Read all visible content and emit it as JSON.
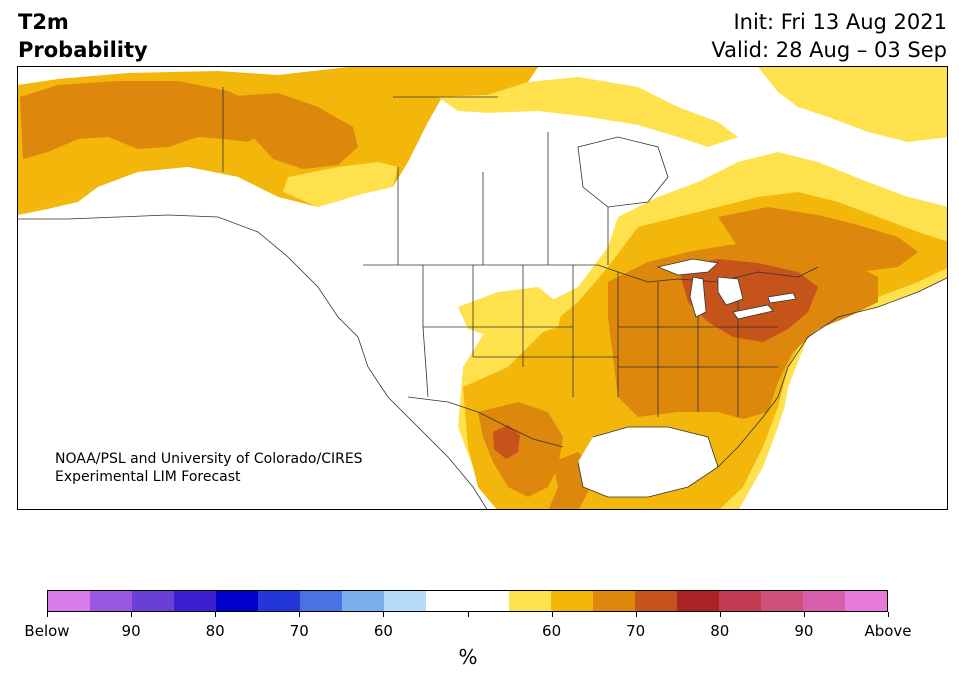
{
  "header": {
    "title_line1": "T2m",
    "title_line2": "Probability",
    "init": "Init: Fri 13 Aug 2021",
    "valid": "Valid: 28 Aug – 03 Sep"
  },
  "map": {
    "credit_line1": "NOAA/PSL and University of Colorado/CIRES",
    "credit_line2": "Experimental LIM Forecast",
    "region": "North America"
  },
  "colorbar": {
    "colors": [
      "#d67bea",
      "#9a57df",
      "#6a3fd6",
      "#3a20d0",
      "#0000cc",
      "#2236d9",
      "#4b72e2",
      "#7ab0ee",
      "#b5ddf9",
      "#ffffff",
      "#ffffff",
      "#ffe14d",
      "#f2b70a",
      "#dd870c",
      "#c5531a",
      "#ad2325",
      "#c23a51",
      "#cf5179",
      "#d85fab",
      "#e87ad8"
    ],
    "labels": [
      "Below",
      "90",
      "80",
      "70",
      "60",
      "60",
      "70",
      "80",
      "90",
      "Above"
    ],
    "unit": "%"
  },
  "colors": {
    "light_yellow": "#ffe14d",
    "yellow": "#f2b70a",
    "orange": "#dd870c",
    "dark_orange": "#c5531a"
  }
}
